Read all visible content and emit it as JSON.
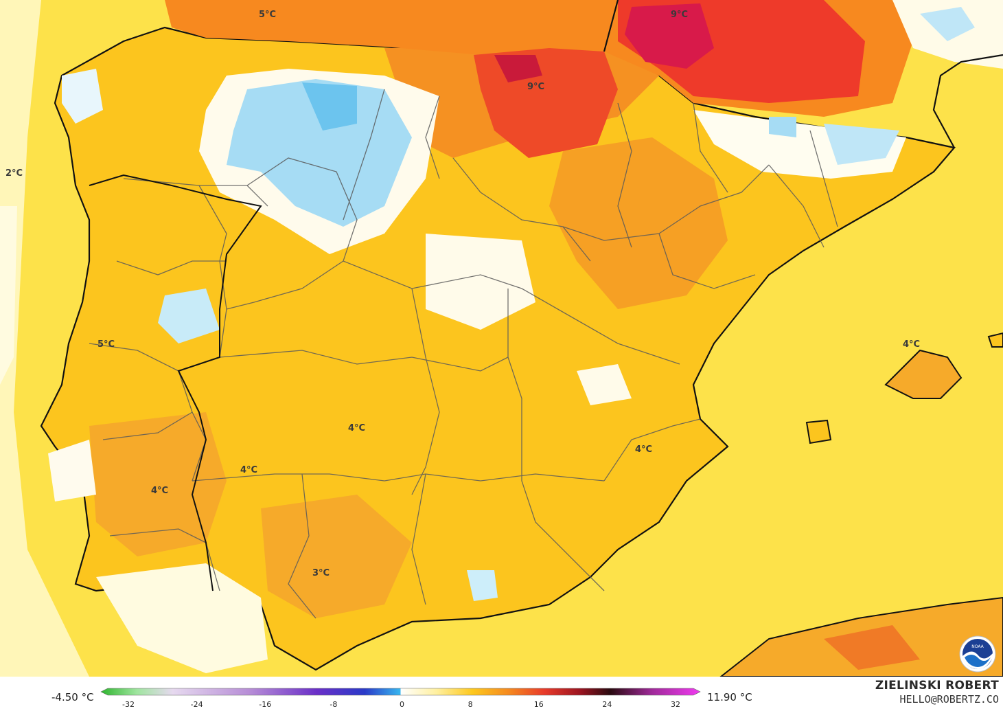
{
  "map_labels": [
    {
      "text": "5°C"
    },
    {
      "text": "9°C"
    },
    {
      "text": "9°C"
    },
    {
      "text": "2°C"
    },
    {
      "text": "5°C"
    },
    {
      "text": "4°C"
    },
    {
      "text": "4°C"
    },
    {
      "text": "4°C"
    },
    {
      "text": "4°C"
    },
    {
      "text": "4°C"
    },
    {
      "text": "3°C"
    }
  ],
  "legend": {
    "min_label": "-4.50 °C",
    "max_label": "11.90 °C",
    "ticks": [
      "-32",
      "-24",
      "-16",
      "-8",
      "0",
      "8",
      "16",
      "24",
      "32"
    ],
    "scale_min": -32,
    "scale_max": 32
  },
  "credit": {
    "name": "ZIELINSKI ROBERT",
    "email": "HELLO@ROBERTZ.CO"
  },
  "colors": {
    "sea_background": "#fde24a",
    "warm_orange": "#f8a21f",
    "hot_red": "#ee3a2a",
    "cool_blue": "#8fd3f2",
    "neutral_white": "#ffffff",
    "coastline": "#111111",
    "borders": "#555555"
  },
  "logo": {
    "icon": "noaa-logo-icon",
    "text": "NOAA"
  }
}
